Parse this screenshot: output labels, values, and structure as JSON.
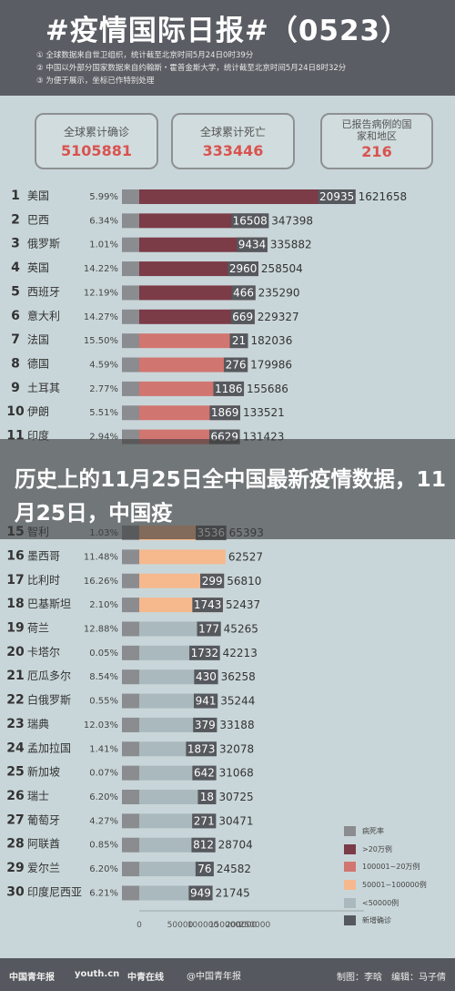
{
  "header": {
    "title": "#疫情国际日报#（0523）",
    "notes": [
      "① 全球数据来自世卫组织，统计截至北京时间5月24日0时39分",
      "② 中国以外部分国家数据来自约翰斯・霍普金斯大学，统计截至北京时间5月24日8时32分",
      "③ 为便于展示，坐标已作特别处理"
    ]
  },
  "stats": [
    {
      "label": "全球累计确诊",
      "value": "5105881"
    },
    {
      "label": "全球累计死亡",
      "value": "333446"
    },
    {
      "label": "已报告病例的国家和地区",
      "value": "216"
    }
  ],
  "colors": {
    "tier1": "#7b3b47",
    "tier2": "#d17570",
    "tier3": "#f5b98d",
    "tier4": "#a9b9bd",
    "grey": "#8a8c8f",
    "new": "#55585d"
  },
  "chart_data": {
    "type": "bar",
    "x_ticks": [
      "0",
      "50000",
      "100000",
      "150000",
      "200000",
      "250000"
    ],
    "rows": [
      {
        "rank": "1",
        "country": "美国",
        "death_rate": "5.99%",
        "new": "20935",
        "total": "1621658",
        "tier": 1
      },
      {
        "rank": "2",
        "country": "巴西",
        "death_rate": "6.34%",
        "new": "16508",
        "total": "347398",
        "tier": 1
      },
      {
        "rank": "3",
        "country": "俄罗斯",
        "death_rate": "1.01%",
        "new": "9434",
        "total": "335882",
        "tier": 1
      },
      {
        "rank": "4",
        "country": "英国",
        "death_rate": "14.22%",
        "new": "2960",
        "total": "258504",
        "tier": 1
      },
      {
        "rank": "5",
        "country": "西班牙",
        "death_rate": "12.19%",
        "new": "466",
        "total": "235290",
        "tier": 1
      },
      {
        "rank": "6",
        "country": "意大利",
        "death_rate": "14.27%",
        "new": "669",
        "total": "229327",
        "tier": 1
      },
      {
        "rank": "7",
        "country": "法国",
        "death_rate": "15.50%",
        "new": "21",
        "total": "182036",
        "tier": 2
      },
      {
        "rank": "8",
        "country": "德国",
        "death_rate": "4.59%",
        "new": "276",
        "total": "179986",
        "tier": 2
      },
      {
        "rank": "9",
        "country": "土耳其",
        "death_rate": "2.77%",
        "new": "1186",
        "total": "155686",
        "tier": 2
      },
      {
        "rank": "10",
        "country": "伊朗",
        "death_rate": "5.51%",
        "new": "1869",
        "total": "133521",
        "tier": 2
      },
      {
        "rank": "11",
        "country": "印度",
        "death_rate": "2.94%",
        "new": "6629",
        "total": "131423",
        "tier": 2
      },
      {
        "rank": "15",
        "country": "智利",
        "death_rate": "1.03%",
        "new": "3536",
        "total": "65393",
        "tier": 3
      },
      {
        "rank": "16",
        "country": "墨西哥",
        "death_rate": "11.48%",
        "new": "",
        "total": "62527",
        "tier": 3
      },
      {
        "rank": "17",
        "country": "比利时",
        "death_rate": "16.26%",
        "new": "299",
        "total": "56810",
        "tier": 3
      },
      {
        "rank": "18",
        "country": "巴基斯坦",
        "death_rate": "2.10%",
        "new": "1743",
        "total": "52437",
        "tier": 3
      },
      {
        "rank": "19",
        "country": "荷兰",
        "death_rate": "12.88%",
        "new": "177",
        "total": "45265",
        "tier": 4
      },
      {
        "rank": "20",
        "country": "卡塔尔",
        "death_rate": "0.05%",
        "new": "1732",
        "total": "42213",
        "tier": 4
      },
      {
        "rank": "21",
        "country": "厄瓜多尔",
        "death_rate": "8.54%",
        "new": "430",
        "total": "36258",
        "tier": 4
      },
      {
        "rank": "22",
        "country": "白俄罗斯",
        "death_rate": "0.55%",
        "new": "941",
        "total": "35244",
        "tier": 4
      },
      {
        "rank": "23",
        "country": "瑞典",
        "death_rate": "12.03%",
        "new": "379",
        "total": "33188",
        "tier": 4
      },
      {
        "rank": "24",
        "country": "孟加拉国",
        "death_rate": "1.41%",
        "new": "1873",
        "total": "32078",
        "tier": 4
      },
      {
        "rank": "25",
        "country": "新加坡",
        "death_rate": "0.07%",
        "new": "642",
        "total": "31068",
        "tier": 4
      },
      {
        "rank": "26",
        "country": "瑞士",
        "death_rate": "6.20%",
        "new": "18",
        "total": "30725",
        "tier": 4
      },
      {
        "rank": "27",
        "country": "葡萄牙",
        "death_rate": "4.27%",
        "new": "271",
        "total": "30471",
        "tier": 4
      },
      {
        "rank": "28",
        "country": "阿联酋",
        "death_rate": "0.85%",
        "new": "812",
        "total": "28704",
        "tier": 4
      },
      {
        "rank": "29",
        "country": "爱尔兰",
        "death_rate": "6.20%",
        "new": "76",
        "total": "24582",
        "tier": 4
      },
      {
        "rank": "30",
        "country": "印度尼西亚",
        "death_rate": "6.21%",
        "new": "949",
        "total": "21745",
        "tier": 4
      }
    ]
  },
  "overlay": {
    "text": "历史上的11月25日全中国最新疫情数据，11月25日，中国疫"
  },
  "legend": [
    {
      "label": "病死率",
      "color": "#8a8c8f"
    },
    {
      "label": ">20万例",
      "color": "#7b3b47"
    },
    {
      "label": "100001~20万例",
      "color": "#d17570"
    },
    {
      "label": "50001~100000例",
      "color": "#f5b98d"
    },
    {
      "label": "<50000例",
      "color": "#a9b9bd"
    },
    {
      "label": "新增确诊",
      "color": "#55585d"
    }
  ],
  "footer": {
    "logo1": "中国青年报",
    "logo2": "youth.cn",
    "logo3": "中青在线",
    "weibo": "@中国青年报",
    "credit": "制图：李晗　编辑：马子倩"
  }
}
